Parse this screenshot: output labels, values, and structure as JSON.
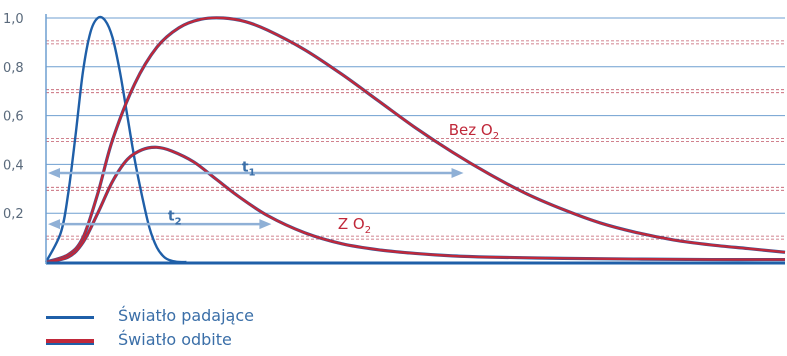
{
  "chart_data": {
    "type": "line",
    "ylim": [
      0,
      1.0
    ],
    "xlim": [
      0,
      100
    ],
    "yticks": [
      "1,0",
      "0,8",
      "0,6",
      "0,4",
      "0,2"
    ],
    "ytick_values": [
      1.0,
      0.8,
      0.6,
      0.4,
      0.2
    ],
    "grid": true,
    "series": [
      {
        "name": "Światło padające",
        "color": "#1f5fa8",
        "x": [
          0,
          2,
          3,
          4,
          5,
          6,
          7,
          8,
          9,
          10,
          11,
          12,
          13,
          14,
          15,
          16,
          17,
          18,
          19
        ],
        "y": [
          0.0,
          0.12,
          0.28,
          0.52,
          0.78,
          0.94,
          1.0,
          0.99,
          0.92,
          0.78,
          0.6,
          0.42,
          0.27,
          0.14,
          0.06,
          0.02,
          0.005,
          0.0,
          0.0
        ]
      },
      {
        "name": "Bez O2",
        "color": "#c0283a",
        "x": [
          0,
          3,
          5,
          7,
          9,
          12,
          15,
          18,
          21,
          24,
          27,
          30,
          35,
          40,
          45,
          50,
          55,
          60,
          65,
          70,
          75,
          80,
          85,
          90,
          95,
          100
        ],
        "y": [
          0.0,
          0.03,
          0.1,
          0.28,
          0.5,
          0.73,
          0.88,
          0.96,
          0.995,
          1.0,
          0.985,
          0.95,
          0.87,
          0.77,
          0.66,
          0.55,
          0.45,
          0.36,
          0.28,
          0.215,
          0.16,
          0.12,
          0.09,
          0.07,
          0.055,
          0.04
        ]
      },
      {
        "name": "Z O2",
        "color": "#c0283a",
        "x": [
          0,
          3,
          5,
          7,
          9,
          11,
          13,
          15,
          17,
          20,
          23,
          26,
          30,
          35,
          40,
          45,
          50,
          55,
          60,
          70,
          80,
          90,
          100
        ],
        "y": [
          0.0,
          0.02,
          0.08,
          0.2,
          0.33,
          0.42,
          0.46,
          0.47,
          0.455,
          0.41,
          0.34,
          0.27,
          0.19,
          0.12,
          0.075,
          0.05,
          0.035,
          0.025,
          0.02,
          0.015,
          0.012,
          0.01,
          0.01
        ]
      }
    ],
    "annotations": [
      {
        "text_main": "Bez O",
        "text_sub": "2",
        "x": 54.5,
        "y": 0.52
      },
      {
        "text_main": "Z O",
        "text_sub": "2",
        "x": 39.5,
        "y": 0.135
      },
      {
        "text_main": "t",
        "text_sub": "1",
        "x": 26.5,
        "y": 0.37,
        "arrow_from": 0,
        "arrow_to": 56.5,
        "arrow_y": 0.365
      },
      {
        "text_main": "t",
        "text_sub": "2",
        "x": 16.5,
        "y": 0.17,
        "arrow_from": 0,
        "arrow_to": 30.5,
        "arrow_y": 0.155
      }
    ]
  },
  "legend": {
    "items": [
      {
        "label": "Światło padające"
      },
      {
        "label": "Światło odbite"
      }
    ]
  }
}
